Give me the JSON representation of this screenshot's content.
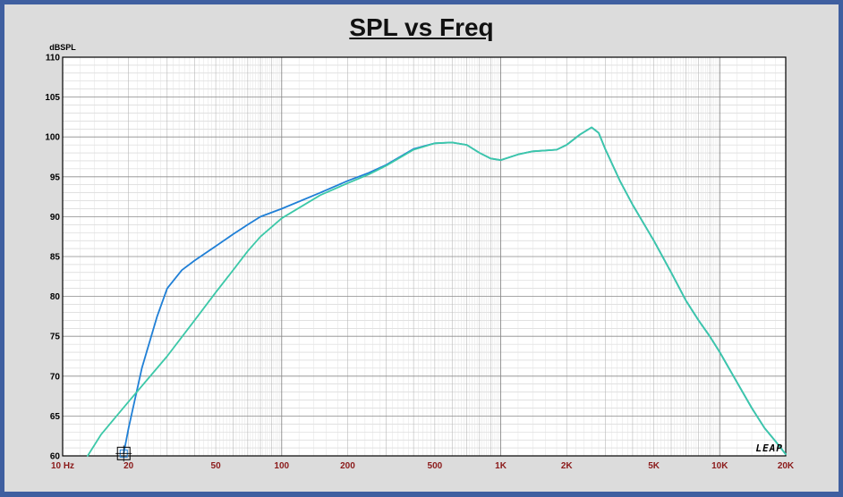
{
  "title": "SPL vs Freq",
  "watermark": "LEAP",
  "chart_data": {
    "type": "line",
    "title": "SPL vs Freq",
    "xlabel": "",
    "ylabel": "dBSPL",
    "x_scale": "log",
    "xlim": [
      10,
      20000
    ],
    "ylim": [
      60,
      110
    ],
    "grid": true,
    "x_tick_labels": [
      {
        "value": 10,
        "label": "10 Hz"
      },
      {
        "value": 20,
        "label": "20"
      },
      {
        "value": 50,
        "label": "50"
      },
      {
        "value": 100,
        "label": "100"
      },
      {
        "value": 200,
        "label": "200"
      },
      {
        "value": 500,
        "label": "500"
      },
      {
        "value": 1000,
        "label": "1K"
      },
      {
        "value": 2000,
        "label": "2K"
      },
      {
        "value": 5000,
        "label": "5K"
      },
      {
        "value": 10000,
        "label": "10K"
      },
      {
        "value": 20000,
        "label": "20K"
      }
    ],
    "y_ticks": [
      60,
      65,
      70,
      75,
      80,
      85,
      90,
      95,
      100,
      105,
      110
    ],
    "series": [
      {
        "color": "#1f7fd6",
        "points": [
          [
            19,
            60.3
          ],
          [
            20,
            63.5
          ],
          [
            23,
            71
          ],
          [
            27,
            77.5
          ],
          [
            30,
            81
          ],
          [
            35,
            83.3
          ],
          [
            40,
            84.5
          ],
          [
            50,
            86.3
          ],
          [
            60,
            87.8
          ],
          [
            70,
            89
          ],
          [
            80,
            90
          ],
          [
            100,
            91
          ],
          [
            150,
            93
          ],
          [
            200,
            94.5
          ],
          [
            250,
            95.5
          ],
          [
            300,
            96.5
          ],
          [
            400,
            98.5
          ],
          [
            500,
            99.2
          ],
          [
            600,
            99.3
          ],
          [
            700,
            99
          ],
          [
            800,
            98
          ],
          [
            900,
            97.3
          ],
          [
            1000,
            97.1
          ],
          [
            1200,
            97.8
          ],
          [
            1400,
            98.2
          ],
          [
            1800,
            98.4
          ],
          [
            2000,
            99
          ],
          [
            2300,
            100.3
          ],
          [
            2600,
            101.2
          ],
          [
            2800,
            100.5
          ],
          [
            3000,
            98.5
          ],
          [
            3500,
            94.5
          ],
          [
            4000,
            91.5
          ],
          [
            5000,
            87
          ],
          [
            6000,
            83
          ],
          [
            7000,
            79.5
          ],
          [
            8000,
            77
          ],
          [
            9000,
            75
          ],
          [
            10000,
            73
          ],
          [
            12000,
            69.2
          ],
          [
            14000,
            66
          ],
          [
            16000,
            63.5
          ],
          [
            18000,
            61.8
          ],
          [
            20000,
            60.2
          ]
        ]
      },
      {
        "color": "#3cc8a8",
        "points": [
          [
            13,
            60
          ],
          [
            15,
            62.7
          ],
          [
            20,
            66.8
          ],
          [
            30,
            72.5
          ],
          [
            40,
            77
          ],
          [
            50,
            80.5
          ],
          [
            60,
            83.3
          ],
          [
            70,
            85.7
          ],
          [
            80,
            87.5
          ],
          [
            100,
            89.8
          ],
          [
            150,
            92.7
          ],
          [
            200,
            94.2
          ],
          [
            250,
            95.3
          ],
          [
            300,
            96.4
          ],
          [
            400,
            98.4
          ],
          [
            500,
            99.2
          ],
          [
            600,
            99.3
          ],
          [
            700,
            99
          ],
          [
            800,
            98
          ],
          [
            900,
            97.3
          ],
          [
            1000,
            97.1
          ],
          [
            1200,
            97.8
          ],
          [
            1400,
            98.2
          ],
          [
            1800,
            98.4
          ],
          [
            2000,
            99
          ],
          [
            2300,
            100.3
          ],
          [
            2600,
            101.2
          ],
          [
            2800,
            100.5
          ],
          [
            3000,
            98.5
          ],
          [
            3500,
            94.5
          ],
          [
            4000,
            91.5
          ],
          [
            5000,
            87
          ],
          [
            6000,
            83
          ],
          [
            7000,
            79.5
          ],
          [
            8000,
            77
          ],
          [
            9000,
            75
          ],
          [
            10000,
            73
          ],
          [
            12000,
            69.2
          ],
          [
            14000,
            66
          ],
          [
            16000,
            63.5
          ],
          [
            18000,
            61.8
          ],
          [
            20000,
            60.2
          ]
        ]
      }
    ],
    "cursor_marker": {
      "x": 19,
      "y": 60.3
    }
  }
}
